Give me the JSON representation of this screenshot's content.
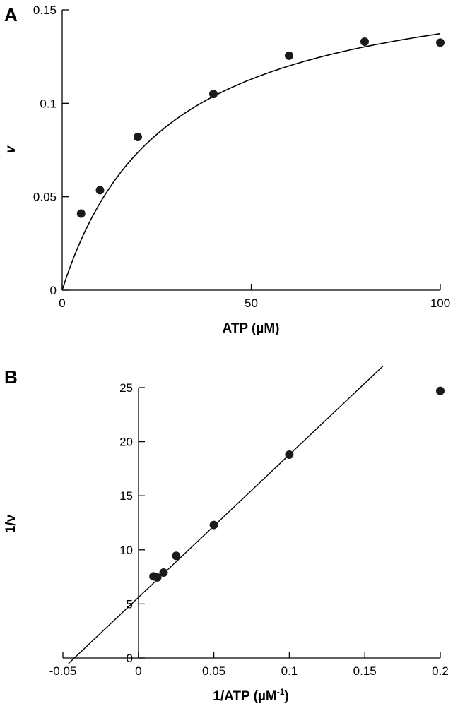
{
  "chart_data": [
    {
      "panel": "A",
      "type": "scatter",
      "xlabel": "ATP (µM)",
      "ylabel": "v",
      "xlim": [
        0,
        100
      ],
      "ylim": [
        0,
        0.15
      ],
      "x_ticks": [
        0,
        50,
        100
      ],
      "y_ticks": [
        0,
        0.05,
        0.1,
        0.15
      ],
      "x_tick_labels": [
        "0",
        "50",
        "100"
      ],
      "y_tick_labels": [
        "0",
        "0.05",
        "0.1",
        "0.15"
      ],
      "grid": false,
      "points": {
        "x": [
          5,
          10,
          20,
          40,
          60,
          80,
          100
        ],
        "y": [
          0.041,
          0.0535,
          0.082,
          0.105,
          0.1255,
          0.133,
          0.1325
        ]
      },
      "fit": {
        "type": "line",
        "model": "Michaelis-Menten",
        "vmax": 0.175,
        "km": 27.5
      }
    },
    {
      "panel": "B",
      "type": "scatter",
      "xlabel": "1/ATP (µM",
      "xlabel_sup": "-1",
      "xlabel_end": ")",
      "ylabel": "1/v",
      "xlim": [
        -0.05,
        0.2
      ],
      "ylim": [
        0,
        25
      ],
      "x_ticks": [
        -0.05,
        0,
        0.05,
        0.1,
        0.15,
        0.2
      ],
      "y_ticks": [
        0,
        5,
        10,
        15,
        20,
        25
      ],
      "x_tick_labels": [
        "-0.05",
        "0",
        "0.05",
        "0.1",
        "0.15",
        "0.2"
      ],
      "y_tick_labels": [
        "0",
        "5",
        "10",
        "15",
        "20",
        "25"
      ],
      "grid": false,
      "points": {
        "x": [
          0.01,
          0.0125,
          0.0167,
          0.025,
          0.05,
          0.1,
          0.2
        ],
        "y": [
          7.55,
          7.45,
          7.9,
          9.45,
          12.3,
          18.8,
          24.7
        ]
      },
      "fit": {
        "type": "line",
        "slope": 132,
        "intercept": 5.6,
        "x_range": [
          -0.0463,
          0.162
        ]
      }
    }
  ]
}
